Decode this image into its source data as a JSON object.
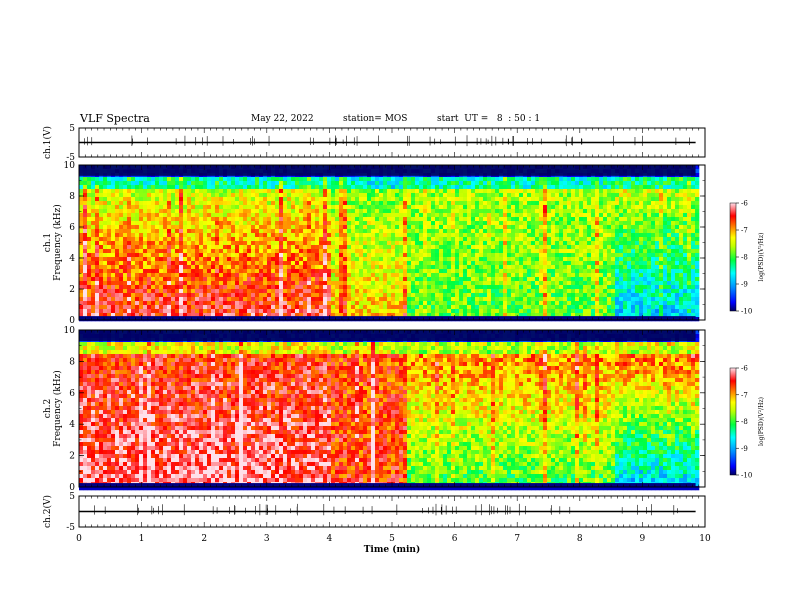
{
  "header": {
    "title": "VLF Spectra",
    "date": "May 22, 2022",
    "station": "station= MOS",
    "start": "start  UT =   8  : 50 : 1"
  },
  "chart_data": [
    {
      "type": "line",
      "panel": "ch1-waveform",
      "ylabel": "ch.1(V)",
      "ylim": [
        -5,
        5
      ],
      "yticks": [
        "5",
        "-5"
      ],
      "series": [
        {
          "x": [
            0,
            10
          ],
          "values": [
            0,
            0
          ]
        }
      ]
    },
    {
      "type": "heatmap",
      "panel": "ch1-spectrogram",
      "ylabel": "ch.1 Frequency (kHz)",
      "ylim": [
        0,
        10
      ],
      "yticks": [
        "0",
        "2",
        "4",
        "6",
        "8",
        "10"
      ],
      "colorbar": {
        "label": "log(PSD)(V²/Hz)",
        "range": [
          -10,
          -6
        ],
        "ticks": [
          "-6",
          "-7",
          "-8",
          "-9",
          "-10"
        ]
      },
      "intensity_profile": [
        {
          "x_range": [
            0,
            4
          ],
          "level_low_freq": -6.4,
          "level_high_freq": -7.6
        },
        {
          "x_range": [
            4,
            5.2
          ],
          "level_low_freq": -7.2,
          "level_high_freq": -7.8
        },
        {
          "x_range": [
            5.2,
            8.5
          ],
          "level_low_freq": -7.9,
          "level_high_freq": -7.6
        },
        {
          "x_range": [
            8.5,
            9.8
          ],
          "level_low_freq": -8.8,
          "level_high_freq": -7.4
        }
      ]
    },
    {
      "type": "heatmap",
      "panel": "ch2-spectrogram",
      "ylabel": "ch.2 Frequency (kHz)",
      "ylim": [
        0,
        10
      ],
      "yticks": [
        "0",
        "2",
        "4",
        "6",
        "8",
        "10"
      ],
      "colorbar": {
        "label": "log(PSD)(V²/Hz)",
        "range": [
          -10,
          -6
        ],
        "ticks": [
          "-6",
          "-7",
          "-8",
          "-9",
          "-10"
        ]
      },
      "intensity_profile": [
        {
          "x_range": [
            0,
            4
          ],
          "level_low_freq": -6.2,
          "level_high_freq": -6.6
        },
        {
          "x_range": [
            4,
            5.2
          ],
          "level_low_freq": -6.6,
          "level_high_freq": -6.7
        },
        {
          "x_range": [
            5.2,
            8.5
          ],
          "level_low_freq": -8.0,
          "level_high_freq": -6.8
        },
        {
          "x_range": [
            8.5,
            9.8
          ],
          "level_low_freq": -8.8,
          "level_high_freq": -6.6
        }
      ]
    },
    {
      "type": "line",
      "panel": "ch2-waveform",
      "ylabel": "ch.2(V)",
      "ylim": [
        -5,
        5
      ],
      "yticks": [
        "5",
        "-5"
      ],
      "series": [
        {
          "x": [
            0,
            10
          ],
          "values": [
            0,
            0
          ]
        }
      ]
    }
  ],
  "x_axis": {
    "label": "Time  (min)",
    "range": [
      0,
      10
    ],
    "ticks": [
      "0",
      "1",
      "2",
      "3",
      "4",
      "5",
      "6",
      "7",
      "8",
      "9",
      "10"
    ]
  },
  "colors": [
    "#000080",
    "#0000ff",
    "#00a0ff",
    "#00ffff",
    "#00ff60",
    "#80ff00",
    "#ffff00",
    "#ff8000",
    "#ff0000",
    "#ffd0e0"
  ]
}
